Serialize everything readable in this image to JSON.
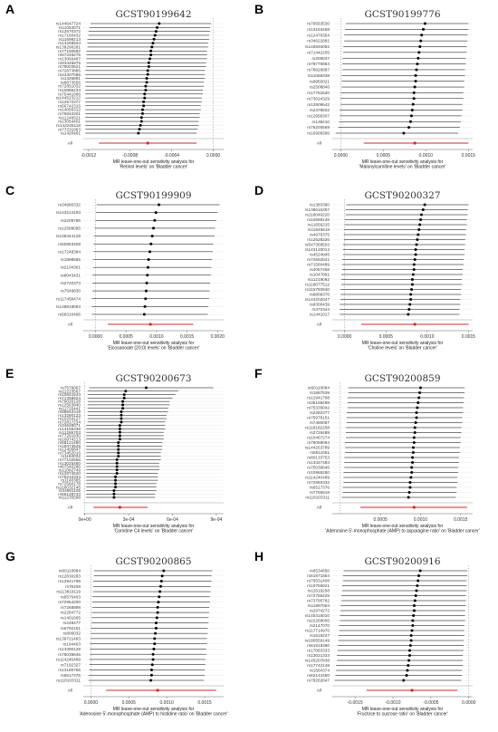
{
  "colors": {
    "ci": "#000000",
    "all": "#d62728",
    "grid": "#e6e6e6",
    "ref": "#888888"
  },
  "chart_data": [
    {
      "type": "scatter",
      "letter": "A",
      "title": "GCST90199642",
      "xlabel": "MR leave-one-out sensitivity analysis for\n'Retinol levels' on 'Bladder cancer'",
      "xlim": [
        -0.00125,
        0.0001
      ],
      "ticks": [
        -0.0012,
        -0.0008,
        -0.0004,
        0.0
      ],
      "tick_labels": [
        "-0.0012",
        "-0.0008",
        "-0.0004",
        "0.0000"
      ],
      "snps": [
        "rs144647724",
        "rs11054071",
        "rs12570372",
        "rs17160432",
        "rs11698213",
        "rs13269504",
        "rs139290281",
        "rs77180592",
        "rs57246275",
        "rs13060487",
        "rs93446875",
        "rs79003521",
        "rs72873885",
        "rs44307096",
        "rs1326891",
        "rs9873556",
        "rs72851032",
        "rs10886234",
        "rs75441066",
        "rs144523212",
        "rs12572377",
        "rs56742315",
        "rs14056312",
        "rs76842201",
        "rs11246521",
        "rs13054401",
        "rs142245118",
        "rs77231063",
        "rs1420461"
      ],
      "estimates": [
        -0.00052,
        -0.00054,
        -0.00055,
        -0.00056,
        -0.00057,
        -0.00058,
        -0.00059,
        -0.0006,
        -0.0006,
        -0.00061,
        -0.00062,
        -0.00062,
        -0.00063,
        -0.00063,
        -0.00064,
        -0.00064,
        -0.00065,
        -0.00065,
        -0.00066,
        -0.00066,
        -0.00067,
        -0.00067,
        -0.00068,
        -0.00068,
        -0.00069,
        -0.00069,
        -0.0007,
        -0.00071,
        -0.00072
      ],
      "ci_low": [
        -0.00118,
        -0.00119,
        -0.0012,
        -0.0012,
        -0.00121,
        -0.00121,
        -0.00121,
        -0.00122,
        -0.00122,
        -0.00122,
        -0.00122,
        -0.00122,
        -0.00123,
        -0.00123,
        -0.00123,
        -0.00123,
        -0.00123,
        -0.00123,
        -0.00123,
        -0.00123,
        -0.00123,
        -0.00123,
        -0.00123,
        -0.00123,
        -0.00123,
        -0.00123,
        -0.00123,
        -0.00123,
        -0.00123
      ],
      "ci_high": [
        -2e-05,
        -3e-05,
        -3e-05,
        -4e-05,
        -4e-05,
        -5e-05,
        -5e-05,
        -6e-05,
        -6e-05,
        -6e-05,
        -7e-05,
        -7e-05,
        -8e-05,
        -8e-05,
        -8e-05,
        -9e-05,
        -9e-05,
        -0.0001,
        -0.0001,
        -0.00011,
        -0.00011,
        -0.00012,
        -0.00012,
        -0.00013,
        -0.00013,
        -0.00014,
        -0.00014,
        -0.00015,
        -0.00016
      ],
      "all": {
        "label": "All",
        "estimate": -0.00063,
        "ci": [
          -0.0011,
          -0.00016
        ]
      }
    },
    {
      "type": "scatter",
      "letter": "B",
      "title": "GCST90199776",
      "xlabel": "MR leave-one-out sensitivity analysis for\n'Malonylcarnitine levels' on 'Bladder cancer'",
      "xlim": [
        -0.0001,
        0.00155
      ],
      "ticks": [
        0.0,
        0.0005,
        0.001,
        0.0015
      ],
      "tick_labels": [
        "0.0000",
        "0.0005",
        "0.0010",
        "0.0015"
      ],
      "snps": [
        "rs79553530",
        "rs13153458",
        "rs12476354",
        "rs34622881",
        "rs145946092",
        "rs71442205",
        "rs200837",
        "rs78775963",
        "rs78826887",
        "rs11068338",
        "rs9950021",
        "rs2508846",
        "rs17781620",
        "rs73024329",
        "rs12909542",
        "rs2378502",
        "rs12958307",
        "rs138410",
        "rs76200569",
        "rs16909306"
      ],
      "estimates": [
        0.00099,
        0.00097,
        0.00095,
        0.00094,
        0.00093,
        0.00092,
        0.00091,
        0.0009,
        0.00089,
        0.00088,
        0.00088,
        0.00087,
        0.00086,
        0.00086,
        0.00085,
        0.00084,
        0.00083,
        0.00082,
        0.0008,
        0.00074
      ],
      "ci_low": [
        6e-05,
        5e-05,
        4e-05,
        4e-05,
        3e-05,
        3e-05,
        2e-05,
        2e-05,
        2e-05,
        1e-05,
        1e-05,
        1e-05,
        0.0,
        0.0,
        0.0,
        -1e-05,
        -1e-05,
        -2e-05,
        -3e-05,
        -6e-05
      ],
      "ci_high": [
        0.0015,
        0.0015,
        0.00149,
        0.00149,
        0.00148,
        0.00148,
        0.00147,
        0.00147,
        0.00146,
        0.00146,
        0.00145,
        0.00145,
        0.00144,
        0.00144,
        0.00143,
        0.00143,
        0.00142,
        0.00141,
        0.0014,
        0.00138
      ],
      "all": {
        "label": "All",
        "estimate": 0.00087,
        "ci": [
          0.00027,
          0.0015
        ]
      }
    },
    {
      "type": "scatter",
      "letter": "C",
      "title": "GCST90199909",
      "xlabel": "MR leave-one-out sensitivity analysis for\n'Eicosanoate (20:0) levels' on 'Bladder cancer'",
      "xlim": [
        -0.0002,
        0.0021
      ],
      "ticks": [
        0.0,
        0.0005,
        0.001,
        0.0015,
        0.002
      ],
      "tick_labels": [
        "0.0000",
        "0.0005",
        "0.0010",
        "0.0015",
        "0.0020"
      ],
      "snps": [
        "rs34980332",
        "rs143214193",
        "rs2209785",
        "rs12589095",
        "rs148344129",
        "rs60953408",
        "rs17248384",
        "rs1898585",
        "rs2104361",
        "rs8043431",
        "rs2720373",
        "rs7649830",
        "rs117458474",
        "rs148818093",
        "rs58310496"
      ],
      "estimates": [
        0.00104,
        0.00099,
        0.00097,
        0.00095,
        0.00093,
        0.00091,
        0.00089,
        0.00087,
        0.00086,
        0.00085,
        0.00084,
        0.00083,
        0.00082,
        0.00081,
        0.0008
      ],
      "ci_low": [
        2e-05,
        1e-05,
        0.0,
        -1e-05,
        -2e-05,
        -3e-05,
        -3e-05,
        -4e-05,
        -4e-05,
        -5e-05,
        -5e-05,
        -5e-05,
        -6e-05,
        -6e-05,
        -6e-05
      ],
      "ci_high": [
        0.00203,
        0.002,
        0.00198,
        0.00196,
        0.00195,
        0.00193,
        0.00192,
        0.00191,
        0.0019,
        0.00189,
        0.00188,
        0.00187,
        0.00186,
        0.00185,
        0.00184
      ],
      "all": {
        "label": "All",
        "estimate": 0.0009,
        "ci": [
          0.0002,
          0.0016
        ]
      }
    },
    {
      "type": "scatter",
      "letter": "D",
      "title": "GCST90200327",
      "xlabel": "MR leave-one-out sensitivity analysis for\n'Choline levels' on 'Bladder cancer'",
      "xlim": [
        -0.00015,
        0.00155
      ],
      "ticks": [
        0.0,
        0.0005,
        0.001,
        0.0015
      ],
      "tick_labels": [
        "0.0000",
        "0.0005",
        "0.0010",
        "0.0015"
      ],
      "snps": [
        "rs1383390",
        "rs138616307",
        "rs118049220",
        "rs10668146",
        "rs11656215",
        "rs11945618",
        "rs4976375",
        "rs12528226",
        "rs547368502",
        "rs143120013",
        "rs4524945",
        "rs72652541",
        "rs71560489",
        "rs4057468",
        "rs1047891",
        "rs11219092",
        "rs118077512",
        "rs115783940",
        "rs9809376",
        "rs144202047",
        "rs9300439",
        "rs372344",
        "rs1441017"
      ],
      "estimates": [
        0.00097,
        0.00095,
        0.00093,
        0.00092,
        0.00091,
        0.0009,
        0.00089,
        0.00088,
        0.00087,
        0.00086,
        0.00086,
        0.00085,
        0.00084,
        0.00084,
        0.00083,
        0.00082,
        0.00082,
        0.00081,
        0.0008,
        0.0008,
        0.00079,
        0.00078,
        0.00077
      ],
      "ci_low": [
        2e-05,
        1e-05,
        1e-05,
        0.0,
        0.0,
        -1e-05,
        -1e-05,
        -1e-05,
        -2e-05,
        -2e-05,
        -2e-05,
        -3e-05,
        -3e-05,
        -3e-05,
        -4e-05,
        -4e-05,
        -4e-05,
        -5e-05,
        -5e-05,
        -5e-05,
        -6e-05,
        -6e-05,
        -6e-05
      ],
      "ci_high": [
        0.0015,
        0.00149,
        0.00149,
        0.00148,
        0.00148,
        0.00147,
        0.00147,
        0.00146,
        0.00146,
        0.00145,
        0.00145,
        0.00144,
        0.00144,
        0.00143,
        0.00143,
        0.00142,
        0.00142,
        0.00141,
        0.00141,
        0.0014,
        0.0014,
        0.00139,
        0.00139
      ],
      "all": {
        "label": "All",
        "estimate": 0.00085,
        "ci": [
          0.0002,
          0.0015
        ]
      }
    },
    {
      "type": "scatter",
      "letter": "E",
      "title": "GCST90200673",
      "xlabel": "MR leave-one-out sensitivity analysis for\n'Carnitine C4 levels' on 'Bladder cancer'",
      "xlim": [
        -1e-05,
        0.00095
      ],
      "ticks": [
        0.0,
        0.0003,
        0.0006,
        0.0009
      ],
      "tick_labels": [
        "0e+00",
        "3e-04",
        "6e-04",
        "9e-04"
      ],
      "snps": [
        "rs7579067",
        "rs11223567",
        "rs10841543",
        "rs71358624",
        "rs79020128",
        "rs12563840",
        "rs11725441",
        "rs58942319",
        "rs13290123",
        "rs10254127",
        "rs72817234",
        "rs34628071",
        "rs14156338",
        "rs11285703",
        "rs77261930",
        "rs10974213",
        "rs68121450",
        "rs19473529",
        "rs12409847",
        "rs73452016",
        "rs1184032",
        "rs77102556",
        "rs13025460",
        "rs67540286",
        "rs11082749",
        "rs12874520",
        "rs78210334",
        "rs1140385",
        "rs72560178",
        "rs116032145",
        "rs34981105",
        "rs55128743",
        "rs11235598"
      ],
      "estimates": [
        0.00042,
        0.00028,
        0.00027,
        0.00027,
        0.00026,
        0.00026,
        0.00026,
        0.00025,
        0.00025,
        0.00025,
        0.00025,
        0.00024,
        0.00024,
        0.00024,
        0.00024,
        0.00024,
        0.00023,
        0.00023,
        0.00023,
        0.00023,
        0.00023,
        0.00022,
        0.00022,
        0.00022,
        0.00022,
        0.00022,
        0.00021,
        0.00021,
        0.00021,
        0.00021,
        0.0002,
        0.0002,
        0.0002
      ],
      "ci_low": [
        3e-05,
        2e-05,
        2e-05,
        2e-05,
        2e-05,
        2e-05,
        2e-05,
        2e-05,
        2e-05,
        2e-05,
        2e-05,
        1e-05,
        1e-05,
        1e-05,
        1e-05,
        1e-05,
        1e-05,
        1e-05,
        1e-05,
        1e-05,
        1e-05,
        1e-05,
        1e-05,
        1e-05,
        1e-05,
        1e-05,
        1e-05,
        1e-05,
        1e-05,
        1e-05,
        1e-05,
        1e-05,
        1e-05
      ],
      "ci_high": [
        0.00088,
        0.00064,
        0.00062,
        0.0006,
        0.00058,
        0.00058,
        0.00057,
        0.00057,
        0.00056,
        0.00056,
        0.00055,
        0.00055,
        0.00055,
        0.00054,
        0.00054,
        0.00054,
        0.00053,
        0.00053,
        0.00053,
        0.00052,
        0.00052,
        0.00052,
        0.00051,
        0.00051,
        0.00051,
        0.0005,
        0.0005,
        0.0005,
        0.00049,
        0.00049,
        0.00049,
        0.00048,
        0.00048
      ],
      "all": {
        "label": "All",
        "estimate": 0.00024,
        "ci": [
          6e-05,
          0.00043
        ]
      }
    },
    {
      "type": "scatter",
      "letter": "F",
      "title": "GCST90200859",
      "xlabel": "MR leave-one-out sensitivity analysis for\n'Adenosine 5'-monophosphate (AMP) to asparagine ratio' on 'Bladder cancer'",
      "xlim": [
        -0.0001,
        0.00165
      ],
      "ticks": [
        0.0005,
        0.001,
        0.0015
      ],
      "tick_labels": [
        "0.0005",
        "0.0010",
        "0.0015"
      ],
      "snps": [
        "rs60110084",
        "rs1887539",
        "rs12941798",
        "rs35158498",
        "rs75335042",
        "rs2282377",
        "rs75978151",
        "rs7490087",
        "rs118182258",
        "rs2726488",
        "rs10467274",
        "rs79058094",
        "rs144253789",
        "rs6511061",
        "rs80133753",
        "rs13427484",
        "rs75039646",
        "rs10965280",
        "rs114240489",
        "rs72950332",
        "rs6517376",
        "rs7765618",
        "rs118103311"
      ],
      "estimates": [
        0.001,
        0.00099,
        0.00098,
        0.00097,
        0.00096,
        0.00095,
        0.00095,
        0.00094,
        0.00093,
        0.00093,
        0.00092,
        0.00092,
        0.00091,
        0.00091,
        0.0009,
        0.0009,
        0.00089,
        0.00089,
        0.00088,
        0.00087,
        0.00087,
        0.00086,
        0.00085
      ],
      "ci_low": [
        0.0001,
        0.0001,
        9e-05,
        9e-05,
        9e-05,
        8e-05,
        8e-05,
        8e-05,
        7e-05,
        7e-05,
        7e-05,
        6e-05,
        6e-05,
        6e-05,
        5e-05,
        5e-05,
        5e-05,
        4e-05,
        4e-05,
        4e-05,
        3e-05,
        3e-05,
        2e-05
      ],
      "ci_high": [
        0.00155,
        0.00155,
        0.00154,
        0.00154,
        0.00153,
        0.00153,
        0.00152,
        0.00152,
        0.00151,
        0.00151,
        0.0015,
        0.0015,
        0.00149,
        0.00149,
        0.00148,
        0.00148,
        0.00147,
        0.00147,
        0.00146,
        0.00146,
        0.00145,
        0.00145,
        0.00144
      ],
      "all": {
        "label": "All",
        "estimate": 0.00092,
        "ci": [
          0.00025,
          0.00158
        ]
      }
    },
    {
      "type": "scatter",
      "letter": "G",
      "title": "GCST90200865",
      "xlabel": "MR leave-one-out sensitivity analysis for\n'Adenosine 5'-monophosphate (AMP) to histidine ratio' on 'Bladder cancer'",
      "xlim": [
        -0.0001,
        0.00175
      ],
      "ticks": [
        0.0,
        0.0005,
        0.001,
        0.0015
      ],
      "tick_labels": [
        "0.0000",
        "0.0005",
        "0.0010",
        "0.0015"
      ],
      "snps": [
        "rs60110084",
        "rs12830283",
        "rs12941798",
        "rs76208",
        "rs113819119",
        "rs9575403",
        "rs72964200",
        "rs7268898",
        "rs2284772",
        "rs1401665",
        "rs248477",
        "rs6792151",
        "rs806032",
        "rs139721493",
        "rs194463",
        "rs13390128",
        "rs75039646",
        "rs114245489",
        "rs7192327",
        "rs13180766",
        "rs6517376",
        "rs118103311"
      ],
      "estimates": [
        0.00096,
        0.00094,
        0.00093,
        0.00092,
        0.00091,
        0.0009,
        0.00089,
        0.00088,
        0.00088,
        0.00087,
        0.00086,
        0.00086,
        0.00085,
        0.00084,
        0.00084,
        0.00083,
        0.00082,
        0.00082,
        0.00081,
        0.0008,
        0.0008,
        0.00079
      ],
      "ci_low": [
        4e-05,
        4e-05,
        3e-05,
        3e-05,
        3e-05,
        2e-05,
        2e-05,
        2e-05,
        1e-05,
        1e-05,
        1e-05,
        0.0,
        0.0,
        0.0,
        -1e-05,
        -1e-05,
        -1e-05,
        -2e-05,
        -2e-05,
        -2e-05,
        -3e-05,
        -3e-05
      ],
      "ci_high": [
        0.0016,
        0.00159,
        0.00159,
        0.00158,
        0.00158,
        0.00157,
        0.00157,
        0.00156,
        0.00156,
        0.00155,
        0.00155,
        0.00154,
        0.00154,
        0.00153,
        0.00153,
        0.00152,
        0.00152,
        0.00151,
        0.00151,
        0.0015,
        0.0015,
        0.00149
      ],
      "all": {
        "label": "All",
        "estimate": 0.00088,
        "ci": [
          0.0002,
          0.00165
        ]
      }
    },
    {
      "type": "scatter",
      "letter": "H",
      "title": "GCST90200916",
      "xlabel": "MR leave-one-out sensitivity analysis for\n'Fructose to sucrose ratio' on 'Bladder cancer'",
      "xlim": [
        -0.0018,
        5e-05
      ],
      "ticks": [
        -0.0015,
        -0.001,
        -0.0005,
        0.0
      ],
      "tick_labels": [
        "-0.0015",
        "-0.0010",
        "-0.0005",
        "0.0000"
      ],
      "snps": [
        "rs6534650",
        "rs61871554",
        "rs76531408",
        "rs10755921",
        "rs11619258",
        "rs72755425",
        "rs73795782",
        "rs11897064",
        "rs2974272",
        "rs145315010",
        "rs22268006",
        "rs2147070",
        "rs117714976",
        "rs1519227",
        "rs180559149",
        "rs61918360",
        "rs17083333",
        "rs13021333",
        "rs145207838",
        "rs17742148",
        "rs1564374",
        "rs62142450",
        "rs78262847"
      ],
      "estimates": [
        -0.00064,
        -0.00066,
        -0.00067,
        -0.00068,
        -0.00069,
        -0.0007,
        -0.00071,
        -0.00072,
        -0.00072,
        -0.00073,
        -0.00074,
        -0.00074,
        -0.00075,
        -0.00076,
        -0.00076,
        -0.00077,
        -0.00078,
        -0.00078,
        -0.00079,
        -0.0008,
        -0.00081,
        -0.00082,
        -0.00086
      ],
      "ci_low": [
        -0.00165,
        -0.00166,
        -0.00166,
        -0.00167,
        -0.00167,
        -0.00168,
        -0.00168,
        -0.00169,
        -0.00169,
        -0.0017,
        -0.0017,
        -0.00171,
        -0.00171,
        -0.00172,
        -0.00172,
        -0.00173,
        -0.00173,
        -0.00174,
        -0.00174,
        -0.00175,
        -0.00175,
        -0.00176,
        -0.00177
      ],
      "ci_high": [
        -2e-05,
        -2e-05,
        -3e-05,
        -3e-05,
        -3e-05,
        -4e-05,
        -4e-05,
        -4e-05,
        -5e-05,
        -5e-05,
        -5e-05,
        -6e-05,
        -6e-05,
        -6e-05,
        -7e-05,
        -7e-05,
        -7e-05,
        -8e-05,
        -8e-05,
        -8e-05,
        -9e-05,
        -9e-05,
        -0.0001
      ],
      "all": {
        "label": "All",
        "estimate": -0.00075,
        "ci": [
          -0.00135,
          -0.00015
        ]
      }
    }
  ]
}
